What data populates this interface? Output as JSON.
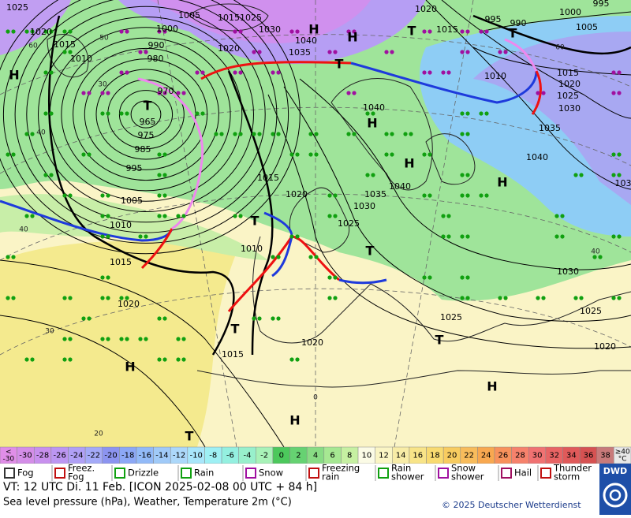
{
  "map": {
    "pressure_labels": [
      "1025",
      "1020",
      "1015",
      "1010",
      "1005",
      "1000",
      "990",
      "980",
      "970",
      "965",
      "975",
      "985",
      "995",
      "1005",
      "1010",
      "1015",
      "1020",
      "1015",
      "1025",
      "1030",
      "1040",
      "1035",
      "1020",
      "1020",
      "995",
      "990",
      "1000",
      "1005",
      "995",
      "1015",
      "1010",
      "1015",
      "1020",
      "1025",
      "1030",
      "1035",
      "1040",
      "1040",
      "1040",
      "1035",
      "1030",
      "1025",
      "1020",
      "1015",
      "1010",
      "1020",
      "1015",
      "1030",
      "1025",
      "1025",
      "1020",
      "103"
    ],
    "centers": [
      "H",
      "H",
      "H",
      "T",
      "T",
      "T",
      "H",
      "H",
      "H",
      "T",
      "T",
      "T",
      "H",
      "T",
      "H",
      "H",
      "T",
      "T"
    ],
    "latitude_labels": [
      "60",
      "50",
      "40",
      "40",
      "30",
      "30",
      "20",
      "0",
      "40",
      "60"
    ]
  },
  "scale": {
    "low": {
      "sign": "<",
      "value": -30,
      "color": "#e08ee8"
    },
    "steps": [
      {
        "value": -30,
        "color": "#d48ee8"
      },
      {
        "value": -28,
        "color": "#c890ee"
      },
      {
        "value": -26,
        "color": "#bc96f2"
      },
      {
        "value": -24,
        "color": "#b0a0f6"
      },
      {
        "value": -22,
        "color": "#a4aaf8"
      },
      {
        "value": -20,
        "color": "#8c94f0"
      },
      {
        "value": -18,
        "color": "#8ca8f6"
      },
      {
        "value": -16,
        "color": "#92baf8"
      },
      {
        "value": -14,
        "color": "#a0caf8"
      },
      {
        "value": -12,
        "color": "#acd8fa"
      },
      {
        "value": -10,
        "color": "#a8e6fa"
      },
      {
        "value": -8,
        "color": "#9ef0f4"
      },
      {
        "value": -6,
        "color": "#94f0e0"
      },
      {
        "value": -4,
        "color": "#98f0cc"
      },
      {
        "value": -2,
        "color": "#a8f2b8"
      },
      {
        "value": 0,
        "color": "#4cc85c"
      },
      {
        "value": 2,
        "color": "#66d272"
      },
      {
        "value": 4,
        "color": "#88dc84"
      },
      {
        "value": 6,
        "color": "#a6e892"
      },
      {
        "value": 8,
        "color": "#c6f0a2"
      },
      {
        "value": 10,
        "color": "#fbfbe6"
      },
      {
        "value": 12,
        "color": "#faf5c4"
      },
      {
        "value": 14,
        "color": "#f8eca6"
      },
      {
        "value": 16,
        "color": "#f8e488"
      },
      {
        "value": 18,
        "color": "#f8da70"
      },
      {
        "value": 20,
        "color": "#f8cc60"
      },
      {
        "value": 22,
        "color": "#f8bc5c"
      },
      {
        "value": 24,
        "color": "#f8a850"
      },
      {
        "value": 26,
        "color": "#f8925c"
      },
      {
        "value": 28,
        "color": "#f6826c"
      },
      {
        "value": 30,
        "color": "#f07272"
      },
      {
        "value": 32,
        "color": "#e86464"
      },
      {
        "value": 34,
        "color": "#e05a5a"
      },
      {
        "value": 36,
        "color": "#d65252"
      },
      {
        "value": 38,
        "color": "#c87a7a"
      }
    ],
    "high": {
      "label": "≥40",
      "unit": "°C",
      "color": "#e8e8e8"
    }
  },
  "legend": [
    {
      "lines": [
        "Fog"
      ],
      "color": "#333"
    },
    {
      "lines": [
        "Freez.",
        "Fog"
      ],
      "color": "#c01010"
    },
    {
      "lines": [
        "Drizzle"
      ],
      "color": "#10a010"
    },
    {
      "lines": [
        "Rain"
      ],
      "color": "#10a010"
    },
    {
      "lines": [
        "Snow"
      ],
      "color": "#a010a0"
    },
    {
      "lines": [
        "Freezing",
        "rain"
      ],
      "color": "#c01010"
    },
    {
      "lines": [
        "Rain",
        "shower"
      ],
      "color": "#10a010"
    },
    {
      "lines": [
        "Snow",
        "shower"
      ],
      "color": "#a010a0"
    },
    {
      "lines": [
        "Hail"
      ],
      "color": "#a01060"
    },
    {
      "lines": [
        "Thunder",
        "storm"
      ],
      "color": "#c01010"
    }
  ],
  "footer": {
    "valid_time": "VT: 12 UTC Di.  11 Feb. [ICON 2025-02-08  00 UTC + 84 h]",
    "description": "Sea level pressure (hPa), Weather, Temperature 2m (°C)",
    "copyright": "© 2025 Deutscher Wetterdienst",
    "logo": "DWD"
  }
}
